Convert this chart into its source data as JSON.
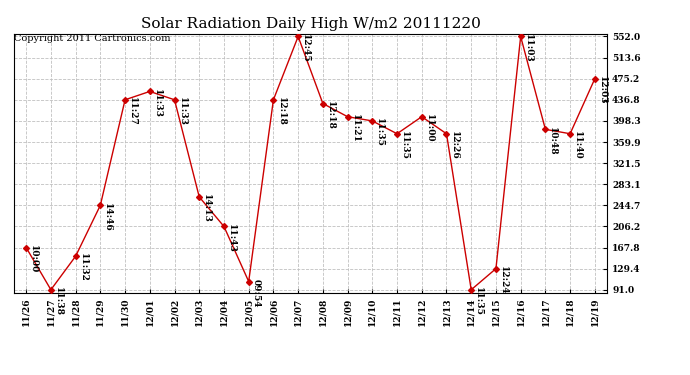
{
  "title": "Solar Radiation Daily High W/m2 20111220",
  "copyright": "Copyright 2011 Cartronics.com",
  "background_color": "#ffffff",
  "line_color": "#cc0000",
  "marker_color": "#cc0000",
  "grid_color": "#c0c0c0",
  "x_labels": [
    "11/26",
    "11/27",
    "11/28",
    "11/29",
    "11/30",
    "12/01",
    "12/02",
    "12/03",
    "12/04",
    "12/05",
    "12/06",
    "12/07",
    "12/08",
    "12/09",
    "12/10",
    "12/11",
    "12/12",
    "12/13",
    "12/14",
    "12/15",
    "12/16",
    "12/17",
    "12/18",
    "12/19"
  ],
  "y_values": [
    167.8,
    91.0,
    152.0,
    244.7,
    436.8,
    452.0,
    436.8,
    260.0,
    206.2,
    106.0,
    436.8,
    552.0,
    430.0,
    406.0,
    398.3,
    375.0,
    406.0,
    375.0,
    91.0,
    129.4,
    552.0,
    383.0,
    375.0,
    475.2
  ],
  "time_labels": [
    "10:00",
    "11:38",
    "11:32",
    "14:46",
    "11:27",
    "11:33",
    "11:33",
    "14:13",
    "11:43",
    "09:54",
    "12:18",
    "12:45",
    "12:18",
    "11:21",
    "11:35",
    "11:35",
    "11:00",
    "12:26",
    "11:35",
    "12:24",
    "11:03",
    "10:48",
    "11:40",
    "12:03"
  ],
  "ylim_min": 91.0,
  "ylim_max": 552.0,
  "yticks": [
    91.0,
    129.4,
    167.8,
    206.2,
    244.7,
    283.1,
    321.5,
    359.9,
    398.3,
    436.8,
    475.2,
    513.6,
    552.0
  ],
  "title_fontsize": 11,
  "label_fontsize": 6.5,
  "tick_fontsize": 6.5,
  "copyright_fontsize": 7
}
